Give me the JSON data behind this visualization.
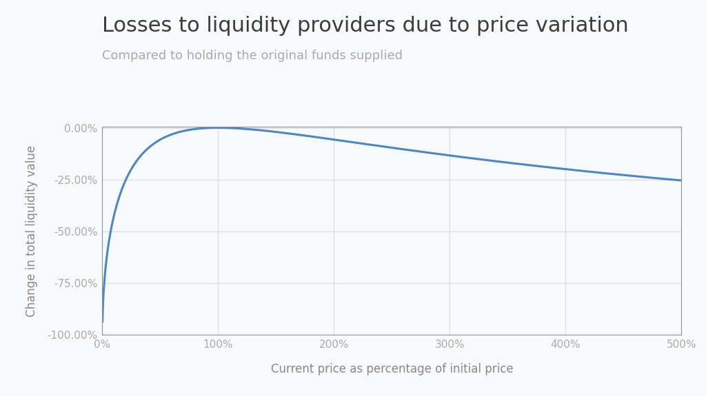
{
  "title": "Losses to liquidity providers due to price variation",
  "subtitle": "Compared to holding the original funds supplied",
  "xlabel": "Current price as percentage of initial price",
  "ylabel": "Change in total liquidity value",
  "title_color": "#3c3c3c",
  "subtitle_color": "#aaaaaa",
  "line_color": "#4a86c8",
  "axis_label_color": "#888888",
  "tick_color": "#aaaaaa",
  "grid_color": "#d8dce0",
  "spine_color": "#aaaaaa",
  "background_color": "#f8f9fa",
  "xlim": [
    0,
    5.0
  ],
  "ylim": [
    -1.0,
    0.005
  ],
  "x_ticks": [
    0,
    1,
    2,
    3,
    4,
    5
  ],
  "y_ticks": [
    0.0,
    -0.25,
    -0.5,
    -0.75,
    -1.0
  ],
  "title_fontsize": 22,
  "subtitle_fontsize": 13,
  "axis_label_fontsize": 12,
  "tick_fontsize": 11,
  "line_width": 2.2
}
